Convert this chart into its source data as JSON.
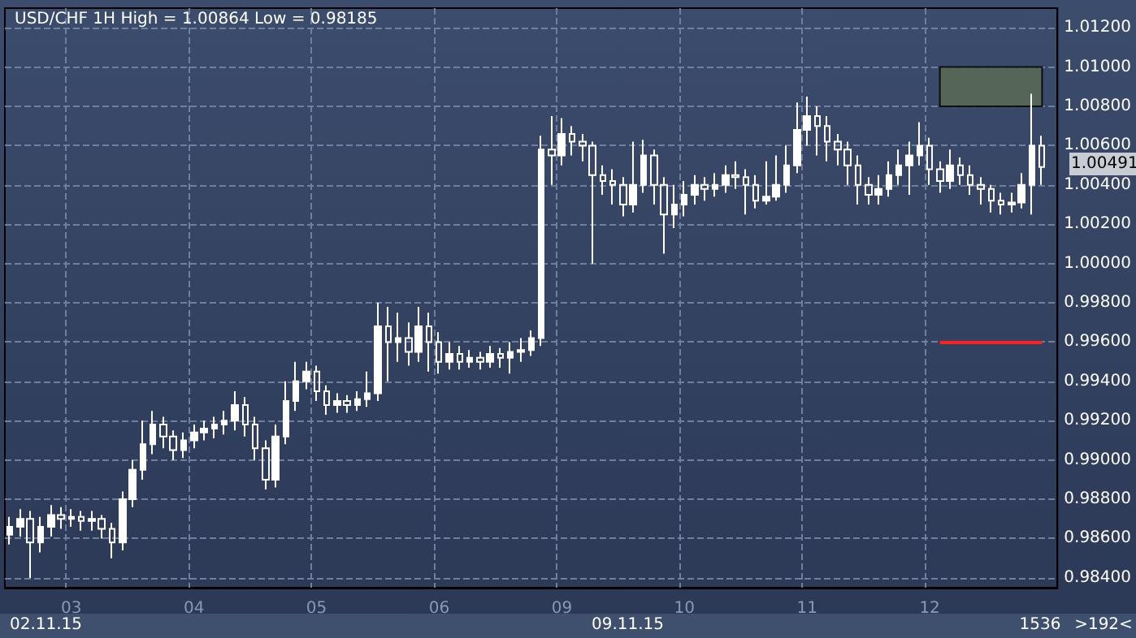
{
  "chart_data": {
    "type": "candlestick",
    "title": "USD/CHF 1H High = 1.00864 Low = 0.98185",
    "categories": [
      null,
      null,
      null,
      null,
      null,
      null,
      "03",
      null,
      null,
      null,
      null,
      null,
      null,
      null,
      null,
      null,
      null,
      null,
      "04",
      null,
      null,
      null,
      null,
      null,
      null,
      null,
      null,
      null,
      null,
      null,
      "05",
      null,
      null,
      null,
      null,
      null,
      null,
      null,
      null,
      null,
      null,
      null,
      "06",
      null,
      null,
      null,
      null,
      null,
      null,
      null,
      null,
      null,
      null,
      null,
      "09",
      null,
      null,
      null,
      null,
      null,
      null,
      null,
      null,
      null,
      null,
      null,
      "10",
      null,
      null,
      null,
      null,
      null,
      null,
      null,
      null,
      null,
      null,
      null,
      "11",
      null,
      null,
      null,
      null,
      null,
      null,
      null,
      null,
      null,
      null,
      null,
      "12",
      null,
      null,
      null,
      null,
      null,
      null,
      null,
      null,
      null,
      null,
      null
    ],
    "series": [
      {
        "color": "#ffffff",
        "ohlc": [
          [
            0.9862,
            0.9871,
            0.9857,
            0.9866
          ],
          [
            0.9866,
            0.9875,
            0.9861,
            0.987
          ],
          [
            0.987,
            0.9874,
            0.984,
            0.9858
          ],
          [
            0.9858,
            0.9871,
            0.9853,
            0.9866
          ],
          [
            0.9866,
            0.9877,
            0.9861,
            0.9872
          ],
          [
            0.9872,
            0.9876,
            0.9865,
            0.987
          ],
          [
            0.987,
            0.9875,
            0.9866,
            0.9871
          ],
          [
            0.9871,
            0.9874,
            0.9864,
            0.9869
          ],
          [
            0.9869,
            0.9874,
            0.9864,
            0.987
          ],
          [
            0.987,
            0.9872,
            0.986,
            0.9865
          ],
          [
            0.9865,
            0.9868,
            0.985,
            0.9858
          ],
          [
            0.9858,
            0.9884,
            0.9854,
            0.988
          ],
          [
            0.988,
            0.99,
            0.9876,
            0.9895
          ],
          [
            0.9895,
            0.992,
            0.989,
            0.9908
          ],
          [
            0.9908,
            0.9925,
            0.9903,
            0.9918
          ],
          [
            0.9918,
            0.9922,
            0.9906,
            0.9912
          ],
          [
            0.9912,
            0.9915,
            0.99,
            0.9905
          ],
          [
            0.9905,
            0.9914,
            0.9901,
            0.991
          ],
          [
            0.991,
            0.9918,
            0.9906,
            0.9914
          ],
          [
            0.9914,
            0.992,
            0.991,
            0.9916
          ],
          [
            0.9916,
            0.9922,
            0.9911,
            0.9918
          ],
          [
            0.9918,
            0.9925,
            0.9913,
            0.992
          ],
          [
            0.992,
            0.9935,
            0.9915,
            0.9928
          ],
          [
            0.9928,
            0.9932,
            0.9912,
            0.9918
          ],
          [
            0.9918,
            0.9922,
            0.99,
            0.9906
          ],
          [
            0.9906,
            0.991,
            0.9885,
            0.989
          ],
          [
            0.989,
            0.9918,
            0.9886,
            0.9912
          ],
          [
            0.9912,
            0.994,
            0.9908,
            0.993
          ],
          [
            0.993,
            0.995,
            0.9925,
            0.994
          ],
          [
            0.994,
            0.995,
            0.9936,
            0.9945
          ],
          [
            0.9945,
            0.9948,
            0.993,
            0.9935
          ],
          [
            0.9935,
            0.9938,
            0.9923,
            0.9928
          ],
          [
            0.9928,
            0.9934,
            0.9924,
            0.993
          ],
          [
            0.993,
            0.9933,
            0.9924,
            0.9928
          ],
          [
            0.9928,
            0.9935,
            0.9925,
            0.9931
          ],
          [
            0.9931,
            0.9945,
            0.9927,
            0.9934
          ],
          [
            0.9934,
            0.998,
            0.993,
            0.9968
          ],
          [
            0.9968,
            0.9978,
            0.994,
            0.996
          ],
          [
            0.996,
            0.9975,
            0.995,
            0.9962
          ],
          [
            0.9962,
            0.997,
            0.9948,
            0.9955
          ],
          [
            0.9955,
            0.9978,
            0.995,
            0.9968
          ],
          [
            0.9968,
            0.9975,
            0.9945,
            0.996
          ],
          [
            0.996,
            0.9965,
            0.9944,
            0.995
          ],
          [
            0.995,
            0.996,
            0.9946,
            0.9954
          ],
          [
            0.9954,
            0.9958,
            0.9946,
            0.995
          ],
          [
            0.995,
            0.9956,
            0.9947,
            0.9952
          ],
          [
            0.9952,
            0.9955,
            0.9946,
            0.995
          ],
          [
            0.995,
            0.9958,
            0.9947,
            0.9954
          ],
          [
            0.9954,
            0.9957,
            0.9947,
            0.9952
          ],
          [
            0.9952,
            0.996,
            0.9944,
            0.9955
          ],
          [
            0.9955,
            0.9962,
            0.995,
            0.9956
          ],
          [
            0.9956,
            0.9966,
            0.9953,
            0.9962
          ],
          [
            0.9962,
            1.0065,
            0.9958,
            1.0058
          ],
          [
            1.0058,
            1.0075,
            1.004,
            1.0055
          ],
          [
            1.0055,
            1.0074,
            1.005,
            1.0066
          ],
          [
            1.0066,
            1.007,
            1.0055,
            1.0062
          ],
          [
            1.0062,
            1.0066,
            1.0052,
            1.006
          ],
          [
            1.006,
            1.0062,
            1.0,
            1.0045
          ],
          [
            1.0045,
            1.005,
            1.0035,
            1.0042
          ],
          [
            1.0042,
            1.0048,
            1.003,
            1.004
          ],
          [
            1.004,
            1.0044,
            1.0024,
            1.003
          ],
          [
            1.003,
            1.0062,
            1.0026,
            1.004
          ],
          [
            1.004,
            1.0063,
            1.0036,
            1.0055
          ],
          [
            1.0055,
            1.0058,
            1.003,
            1.004
          ],
          [
            1.004,
            1.0044,
            1.0005,
            1.0025
          ],
          [
            1.0025,
            1.004,
            1.0018,
            1.003
          ],
          [
            1.003,
            1.0042,
            1.0024,
            1.0035
          ],
          [
            1.0035,
            1.0045,
            1.003,
            1.004
          ],
          [
            1.004,
            1.0044,
            1.0032,
            1.0038
          ],
          [
            1.0038,
            1.0046,
            1.0034,
            1.004
          ],
          [
            1.004,
            1.005,
            1.0036,
            1.0045
          ],
          [
            1.0045,
            1.0052,
            1.0038,
            1.0044
          ],
          [
            1.0044,
            1.0048,
            1.0025,
            1.004
          ],
          [
            1.004,
            1.0045,
            1.0028,
            1.0032
          ],
          [
            1.0032,
            1.0052,
            1.003,
            1.0034
          ],
          [
            1.0034,
            1.0055,
            1.0032,
            1.004
          ],
          [
            1.004,
            1.006,
            1.0036,
            1.005
          ],
          [
            1.005,
            1.0082,
            1.0046,
            1.0068
          ],
          [
            1.0068,
            1.0085,
            1.006,
            1.0075
          ],
          [
            1.0075,
            1.008,
            1.0055,
            1.007
          ],
          [
            1.007,
            1.0075,
            1.0052,
            1.0062
          ],
          [
            1.0062,
            1.0066,
            1.005,
            1.0058
          ],
          [
            1.0058,
            1.0062,
            1.004,
            1.005
          ],
          [
            1.005,
            1.0055,
            1.003,
            1.004
          ],
          [
            1.004,
            1.0044,
            1.003,
            1.0035
          ],
          [
            1.0035,
            1.0045,
            1.003,
            1.0038
          ],
          [
            1.0038,
            1.0052,
            1.0034,
            1.0045
          ],
          [
            1.0045,
            1.0058,
            1.004,
            1.005
          ],
          [
            1.005,
            1.0062,
            1.0035,
            1.0055
          ],
          [
            1.0055,
            1.0072,
            1.005,
            1.006
          ],
          [
            1.006,
            1.0064,
            1.004,
            1.0048
          ],
          [
            1.0048,
            1.0052,
            1.0036,
            1.0042
          ],
          [
            1.0042,
            1.0058,
            1.0038,
            1.005
          ],
          [
            1.005,
            1.0054,
            1.004,
            1.0045
          ],
          [
            1.0045,
            1.005,
            1.0035,
            1.004
          ],
          [
            1.004,
            1.0044,
            1.003,
            1.0038
          ],
          [
            1.0038,
            1.004,
            1.0026,
            1.0032
          ],
          [
            1.0032,
            1.0036,
            1.0025,
            1.003
          ],
          [
            1.003,
            1.0036,
            1.0026,
            1.0031
          ],
          [
            1.0031,
            1.0046,
            1.0028,
            1.004
          ],
          [
            1.004,
            1.00864,
            1.0025,
            1.006
          ],
          [
            1.006,
            1.0065,
            1.004,
            1.00491
          ]
        ]
      }
    ],
    "ylim": [
      0.9835,
      1.013
    ],
    "yticks": [
      {
        "value": 0.984,
        "label": "0.98400"
      },
      {
        "value": 0.986,
        "label": "0.98600"
      },
      {
        "value": 0.988,
        "label": "0.98800"
      },
      {
        "value": 0.99,
        "label": "0.99000"
      },
      {
        "value": 0.992,
        "label": "0.99200"
      },
      {
        "value": 0.994,
        "label": "0.99400"
      },
      {
        "value": 0.996,
        "label": "0.99600"
      },
      {
        "value": 0.998,
        "label": "0.99800"
      },
      {
        "value": 1.0,
        "label": "1.00000"
      },
      {
        "value": 1.002,
        "label": "1.00200"
      },
      {
        "value": 1.004,
        "label": "1.00400"
      },
      {
        "value": 1.006,
        "label": "1.00600"
      },
      {
        "value": 1.008,
        "label": "1.00800"
      },
      {
        "value": 1.01,
        "label": "1.01000"
      },
      {
        "value": 1.012,
        "label": "1.01200"
      }
    ],
    "bands": [
      {
        "axis": "y",
        "from": 1.008,
        "to": 1.01,
        "color": "#5a6b55"
      }
    ],
    "ref_lines": [
      {
        "axis": "y",
        "value": 0.996,
        "color": "#ff2020"
      }
    ],
    "annotations": [
      "1.00491",
      "02.11.15",
      "09.11.15",
      "1536",
      ">192<"
    ],
    "grid": true
  }
}
